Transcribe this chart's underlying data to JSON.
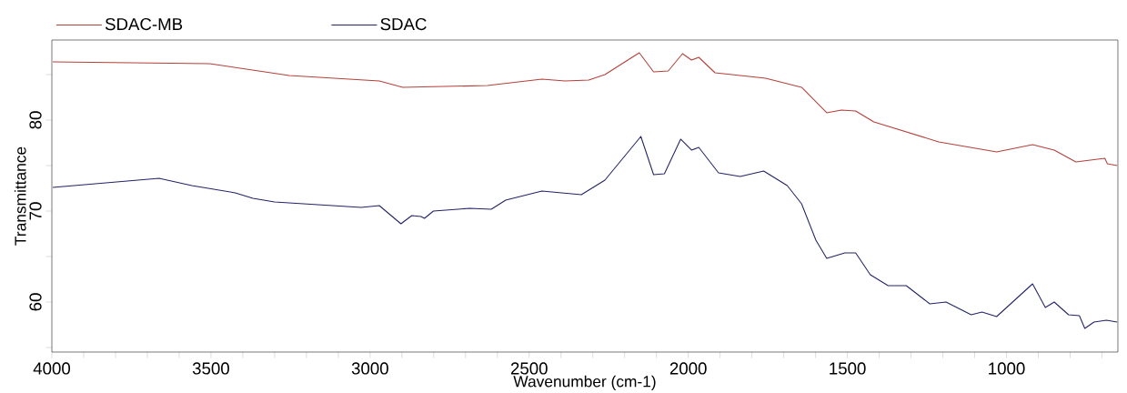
{
  "chart_data": {
    "type": "line",
    "xlabel": "Wavenumber (cm-1)",
    "ylabel": "Transmittance",
    "xlim": [
      4000,
      650
    ],
    "ylim": [
      54.5,
      88.8
    ],
    "xticks": [
      4000,
      {
        "value": 3900,
        "label": null
      },
      {
        "value": 3800,
        "label": null
      },
      {
        "value": 3700,
        "label": null
      },
      {
        "value": 3600,
        "label": null
      },
      3500,
      {
        "value": 3400,
        "label": null
      },
      {
        "value": 3300,
        "label": null
      },
      {
        "value": 3200,
        "label": null
      },
      {
        "value": 3100,
        "label": null
      },
      3000,
      {
        "value": 2900,
        "label": null
      },
      {
        "value": 2800,
        "label": null
      },
      {
        "value": 2700,
        "label": null
      },
      {
        "value": 2600,
        "label": null
      },
      2500,
      {
        "value": 2400,
        "label": null
      },
      {
        "value": 2300,
        "label": null
      },
      {
        "value": 2200,
        "label": null
      },
      {
        "value": 2100,
        "label": null
      },
      2000,
      {
        "value": 1900,
        "label": null
      },
      {
        "value": 1800,
        "label": null
      },
      {
        "value": 1700,
        "label": null
      },
      {
        "value": 1600,
        "label": null
      },
      1500,
      {
        "value": 1400,
        "label": null
      },
      {
        "value": 1300,
        "label": null
      },
      {
        "value": 1200,
        "label": null
      },
      {
        "value": 1100,
        "label": null
      },
      1000,
      {
        "value": 900,
        "label": null
      },
      {
        "value": 800,
        "label": null
      },
      {
        "value": 700,
        "label": null
      }
    ],
    "yticks": [
      {
        "value": 55,
        "label": null
      },
      60,
      {
        "value": 65,
        "label": null
      },
      70,
      {
        "value": 75,
        "label": null
      },
      80,
      {
        "value": 85,
        "label": null
      }
    ],
    "legend": "top",
    "grid": false,
    "marker": "none",
    "line_style": "solid",
    "series": [
      {
        "name": "SDAC-MB",
        "color": "#b5403a",
        "x": [
          3997,
          3504,
          3254,
          2971,
          2897,
          2631,
          2460,
          2387,
          2313,
          2262,
          2154,
          2109,
          2063,
          2018,
          1990,
          1967,
          1916,
          1757,
          1644,
          1565,
          1519,
          1474,
          1417,
          1213,
          1031,
          918,
          850,
          782,
          691,
          683,
          652
        ],
        "values": [
          86.4,
          86.2,
          84.9,
          84.3,
          83.6,
          83.8,
          84.5,
          84.3,
          84.4,
          85.0,
          87.4,
          85.3,
          85.4,
          87.3,
          86.6,
          86.9,
          85.2,
          84.6,
          83.6,
          80.8,
          81.1,
          81.0,
          79.8,
          77.6,
          76.5,
          77.3,
          76.7,
          75.4,
          75.8,
          75.2,
          75.0
        ]
      },
      {
        "name": "SDAC",
        "color": "#232368",
        "x": [
          3997,
          3663,
          3560,
          3424,
          3368,
          3300,
          3028,
          2971,
          2903,
          2869,
          2840,
          2829,
          2801,
          2687,
          2619,
          2574,
          2460,
          2336,
          2262,
          2149,
          2109,
          2075,
          2024,
          1990,
          1967,
          1905,
          1837,
          1763,
          1689,
          1644,
          1599,
          1565,
          1508,
          1474,
          1428,
          1372,
          1315,
          1241,
          1190,
          1111,
          1077,
          1031,
          918,
          878,
          850,
          805,
          771,
          754,
          725,
          686,
          652
        ],
        "values": [
          72.6,
          73.6,
          72.8,
          72.0,
          71.4,
          71.0,
          70.4,
          70.6,
          68.6,
          69.5,
          69.4,
          69.2,
          70.0,
          70.3,
          70.2,
          71.2,
          72.2,
          71.8,
          73.4,
          78.2,
          74.0,
          74.1,
          77.9,
          76.7,
          77.0,
          74.2,
          73.8,
          74.4,
          72.8,
          70.8,
          66.8,
          64.8,
          65.4,
          65.4,
          63.0,
          61.8,
          61.8,
          59.8,
          60.0,
          58.6,
          58.9,
          58.4,
          62.0,
          59.4,
          60.0,
          58.6,
          58.5,
          57.1,
          57.8,
          58.0,
          57.8
        ]
      }
    ]
  }
}
